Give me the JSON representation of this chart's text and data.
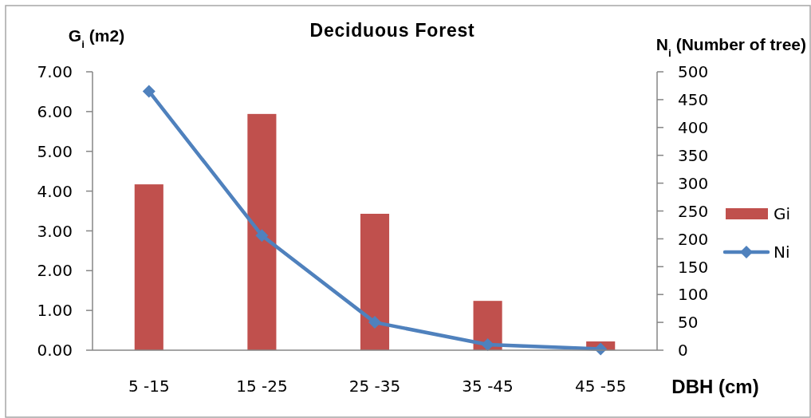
{
  "chart_data": {
    "type": "bar",
    "title": "Deciduous Forest",
    "ylabel": "G$_{i}$ (m2)",
    "y2label": "N$_{i}$ (Number of tree)",
    "xlabel": "DBH (cm)",
    "categories": [
      "5 -15",
      "15 -25",
      "25 -35",
      "35 -45",
      "45 -55"
    ],
    "series": [
      {
        "name": "Gi",
        "color": "#c0504d",
        "values": [
          4.17,
          5.94,
          3.43,
          1.24,
          0.22
        ]
      },
      {
        "name": "Ni",
        "type": "line",
        "axis": "y2",
        "color": "#4f81bd",
        "marker": "diamond",
        "values": [
          465,
          206,
          50,
          10,
          2
        ]
      }
    ],
    "ylim": [
      0,
      7
    ],
    "yticks": [
      {
        "value": 0,
        "label": "0.00"
      },
      {
        "value": 1,
        "label": "1.00"
      },
      {
        "value": 2,
        "label": "2.00"
      },
      {
        "value": 3,
        "label": "3.00"
      },
      {
        "value": 4,
        "label": "4.00"
      },
      {
        "value": 5,
        "label": "5.00"
      },
      {
        "value": 6,
        "label": "6.00"
      },
      {
        "value": 7,
        "label": "7.00"
      }
    ],
    "y2lim": [
      0,
      500
    ],
    "y2ticks": [
      0,
      50,
      100,
      150,
      200,
      250,
      300,
      350,
      400,
      450,
      500
    ],
    "legend": "right"
  }
}
